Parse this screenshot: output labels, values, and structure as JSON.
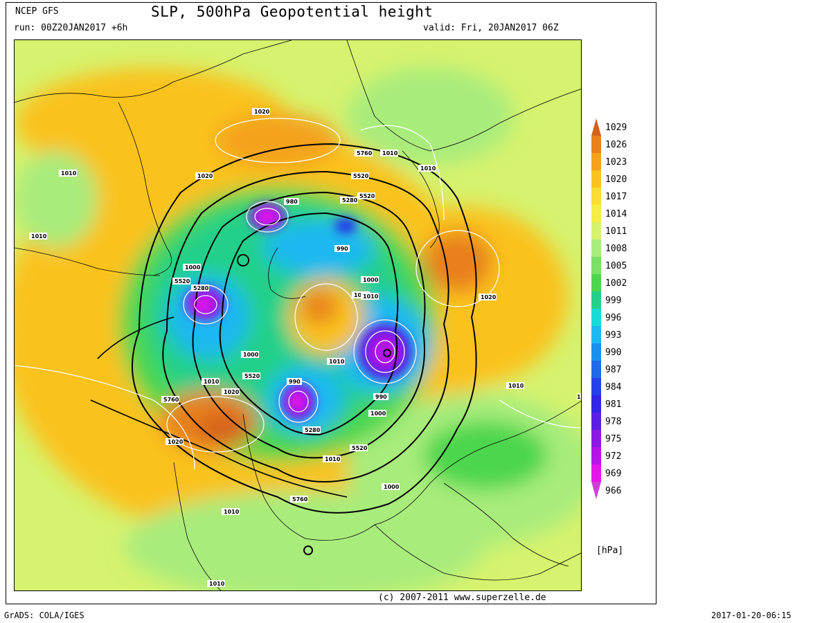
{
  "header": {
    "source": "NCEP GFS",
    "title": "SLP, 500hPa Geopotential height",
    "run": "run: 00Z20JAN2017 +6h",
    "valid": "valid: Fri, 20JAN2017 06Z"
  },
  "footer": {
    "copyright": "(c) 2007-2011 www.superzelle.de",
    "grads": "GrADS: COLA/IGES",
    "timestamp": "2017-01-20-06:15"
  },
  "legend": {
    "unit": "[hPa]",
    "levels": [
      {
        "value": "1029",
        "color": "#d4621a"
      },
      {
        "value": "1026",
        "color": "#e8801c"
      },
      {
        "value": "1023",
        "color": "#f4a21c"
      },
      {
        "value": "1020",
        "color": "#fac21e"
      },
      {
        "value": "1017",
        "color": "#fadc32"
      },
      {
        "value": "1014",
        "color": "#f2ee44"
      },
      {
        "value": "1011",
        "color": "#d6f26e"
      },
      {
        "value": "1008",
        "color": "#a8ec7c"
      },
      {
        "value": "1005",
        "color": "#7ce066"
      },
      {
        "value": "1002",
        "color": "#4cd64e"
      },
      {
        "value": "999",
        "color": "#22d08a"
      },
      {
        "value": "996",
        "color": "#16dcd8"
      },
      {
        "value": "993",
        "color": "#1cb8f2"
      },
      {
        "value": "990",
        "color": "#1a90ee"
      },
      {
        "value": "987",
        "color": "#1e6aea"
      },
      {
        "value": "984",
        "color": "#2440ea"
      },
      {
        "value": "981",
        "color": "#3224e8"
      },
      {
        "value": "978",
        "color": "#5c1ee6"
      },
      {
        "value": "975",
        "color": "#8c18e6"
      },
      {
        "value": "972",
        "color": "#b414e8"
      },
      {
        "value": "969",
        "color": "#e614ea"
      },
      {
        "value": "966",
        "color": "#d040d8"
      }
    ]
  },
  "map_labels": {
    "slp": [
      "1020",
      "1020",
      "1010",
      "1010",
      "1010",
      "1010",
      "1010",
      "1010",
      "1010",
      "1020",
      "1020",
      "1020",
      "1000",
      "1000",
      "1000",
      "1000",
      "1000",
      "1010",
      "1010",
      "1000",
      "990",
      "990",
      "990",
      "980",
      "1010",
      "1010",
      "1010"
    ],
    "height": [
      "5760",
      "5520",
      "5280",
      "5520",
      "5280",
      "5520",
      "5760",
      "5520",
      "5280",
      "5520",
      "5760"
    ]
  }
}
